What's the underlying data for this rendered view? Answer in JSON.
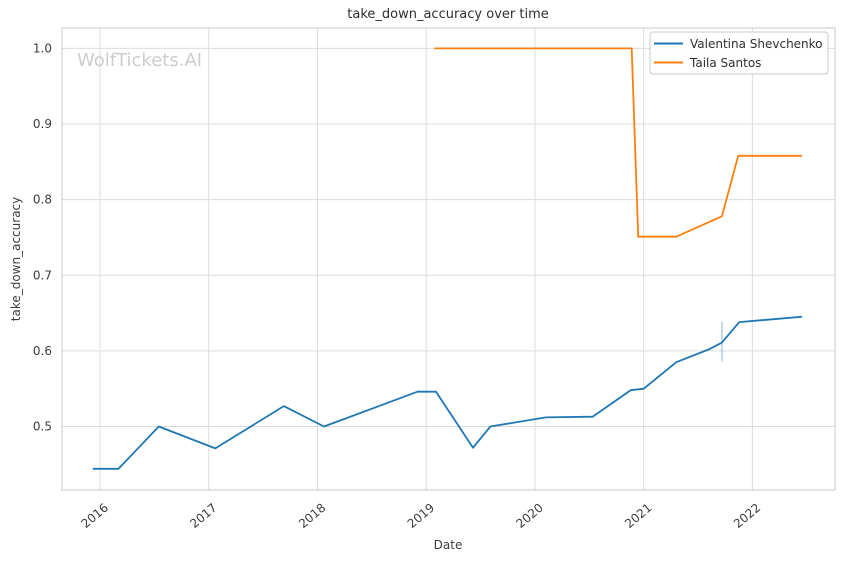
{
  "colors": {
    "background": "#ffffff",
    "grid": "#dcdcdc",
    "spine": "#c9c9c9",
    "title_text": "#2f2f2f",
    "tick_text": "#3d3d3d",
    "axis_label_text": "#3d3d3d",
    "legend_text": "#2f2f2f",
    "legend_border": "#c9c9c9",
    "watermark": "#cdcdcd",
    "series_blue": "#1f77b4",
    "series_orange": "#ff7f0e"
  },
  "chart_data": {
    "type": "line",
    "title": "take_down_accuracy over time",
    "xlabel": "Date",
    "ylabel": "take_down_accuracy",
    "watermark": "WolfTickets.AI",
    "grid": true,
    "legend": {
      "position": "upper right",
      "entries": [
        "Valentina Shevchenko",
        "Taila Santos"
      ]
    },
    "x_axis": {
      "unit": "year",
      "tick_values": [
        2016,
        2017,
        2018,
        2019,
        2020,
        2021,
        2022
      ],
      "tick_labels": [
        "2016",
        "2017",
        "2018",
        "2019",
        "2020",
        "2021",
        "2022"
      ],
      "range": [
        2015.65,
        2022.76
      ]
    },
    "y_axis": {
      "tick_values": [
        0.5,
        0.6,
        0.7,
        0.8,
        0.9,
        1.0
      ],
      "tick_labels": [
        "0.5",
        "0.6",
        "0.7",
        "0.8",
        "0.9",
        "1.0"
      ],
      "range": [
        0.416,
        1.027
      ]
    },
    "series": [
      {
        "name": "Valentina Shevchenko",
        "color": "#1f77b4",
        "points": [
          [
            2015.94,
            0.444
          ],
          [
            2016.17,
            0.444
          ],
          [
            2016.54,
            0.5
          ],
          [
            2017.06,
            0.471
          ],
          [
            2017.69,
            0.527
          ],
          [
            2018.06,
            0.5
          ],
          [
            2018.92,
            0.546
          ],
          [
            2019.09,
            0.546
          ],
          [
            2019.43,
            0.472
          ],
          [
            2019.59,
            0.5
          ],
          [
            2020.1,
            0.512
          ],
          [
            2020.53,
            0.513
          ],
          [
            2020.88,
            0.548
          ],
          [
            2021.0,
            0.55
          ],
          [
            2021.3,
            0.585
          ],
          [
            2021.6,
            0.602
          ],
          [
            2021.72,
            0.611
          ],
          [
            2021.88,
            0.638
          ],
          [
            2022.45,
            0.645
          ]
        ],
        "error_bars": [
          {
            "x": 2021.72,
            "y_low": 0.586,
            "y_high": 0.639
          }
        ]
      },
      {
        "name": "Taila Santos",
        "color": "#ff7f0e",
        "points": [
          [
            2019.08,
            1.0
          ],
          [
            2020.89,
            1.0
          ],
          [
            2020.95,
            0.751
          ],
          [
            2021.3,
            0.751
          ],
          [
            2021.72,
            0.778
          ],
          [
            2021.87,
            0.858
          ],
          [
            2022.45,
            0.858
          ]
        ],
        "error_bars": []
      }
    ]
  }
}
